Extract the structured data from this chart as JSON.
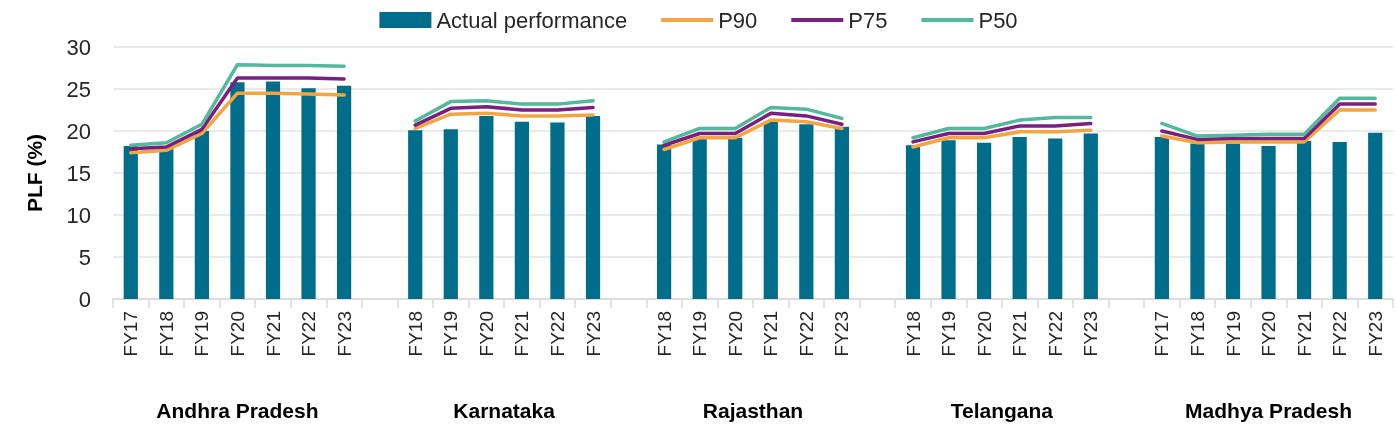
{
  "chart_data": {
    "type": "bar",
    "ylabel": "PLF (%)",
    "categories": [
      "FY17",
      "FY18",
      "FY19",
      "FY20",
      "FY21",
      "FY22",
      "FY23",
      null,
      "FY18",
      "FY19",
      "FY20",
      "FY21",
      "FY22",
      "FY23",
      null,
      "FY18",
      "FY19",
      "FY20",
      "FY21",
      "FY22",
      "FY23",
      null,
      "FY18",
      "FY19",
      "FY20",
      "FY21",
      "FY22",
      "FY23",
      null,
      "FY17",
      "FY18",
      "FY19",
      "FY20",
      "FY21",
      "FY22",
      "FY23"
    ],
    "series": [
      {
        "name": "Actual performance",
        "color": "#006e8a",
        "values": [
          18.2,
          17.9,
          20.0,
          25.8,
          25.9,
          25.1,
          25.4,
          null,
          20.1,
          20.2,
          21.8,
          21.1,
          21.0,
          21.8,
          null,
          18.4,
          19.1,
          19.2,
          21.1,
          20.8,
          20.5,
          null,
          18.3,
          18.9,
          18.6,
          19.3,
          19.1,
          19.7,
          null,
          19.3,
          18.5,
          18.5,
          18.2,
          18.8,
          18.7,
          19.8
        ]
      },
      {
        "name": "P90",
        "type": "line",
        "color": "#f2a541",
        "values": [
          17.4,
          17.7,
          19.7,
          24.5,
          24.5,
          24.4,
          24.3,
          null,
          20.3,
          22.0,
          22.1,
          21.8,
          21.8,
          21.9,
          null,
          17.8,
          19.2,
          19.2,
          21.3,
          21.1,
          20.3,
          null,
          18.1,
          19.2,
          19.2,
          19.9,
          19.9,
          20.1,
          null,
          19.4,
          18.6,
          18.7,
          18.7,
          18.7,
          22.5,
          22.5
        ]
      },
      {
        "name": "P75",
        "type": "line",
        "color": "#78207f",
        "values": [
          17.9,
          18.1,
          20.2,
          26.3,
          26.3,
          26.3,
          26.2,
          null,
          20.7,
          22.7,
          22.9,
          22.5,
          22.5,
          22.8,
          null,
          18.3,
          19.7,
          19.7,
          22.1,
          21.8,
          20.8,
          null,
          18.7,
          19.7,
          19.7,
          20.6,
          20.6,
          20.9,
          null,
          20.0,
          19.0,
          19.1,
          19.1,
          19.1,
          23.2,
          23.2
        ]
      },
      {
        "name": "P50",
        "type": "line",
        "color": "#52b99b",
        "values": [
          18.3,
          18.6,
          20.8,
          27.9,
          27.8,
          27.8,
          27.7,
          null,
          21.2,
          23.5,
          23.6,
          23.2,
          23.2,
          23.6,
          null,
          18.7,
          20.3,
          20.3,
          22.8,
          22.6,
          21.5,
          null,
          19.2,
          20.3,
          20.3,
          21.3,
          21.6,
          21.6,
          null,
          20.9,
          19.4,
          19.5,
          19.6,
          19.6,
          23.9,
          23.9
        ]
      }
    ],
    "ylim": [
      0,
      30
    ],
    "yticks": [
      0,
      5,
      10,
      15,
      20,
      25,
      30
    ],
    "grid": "y",
    "legend": "top",
    "marker": "none",
    "line_style": "solid",
    "annotations": [
      "Andhra Pradesh",
      "Karnataka",
      "Rajasthan",
      "Telangana",
      "Madhya Pradesh"
    ]
  }
}
